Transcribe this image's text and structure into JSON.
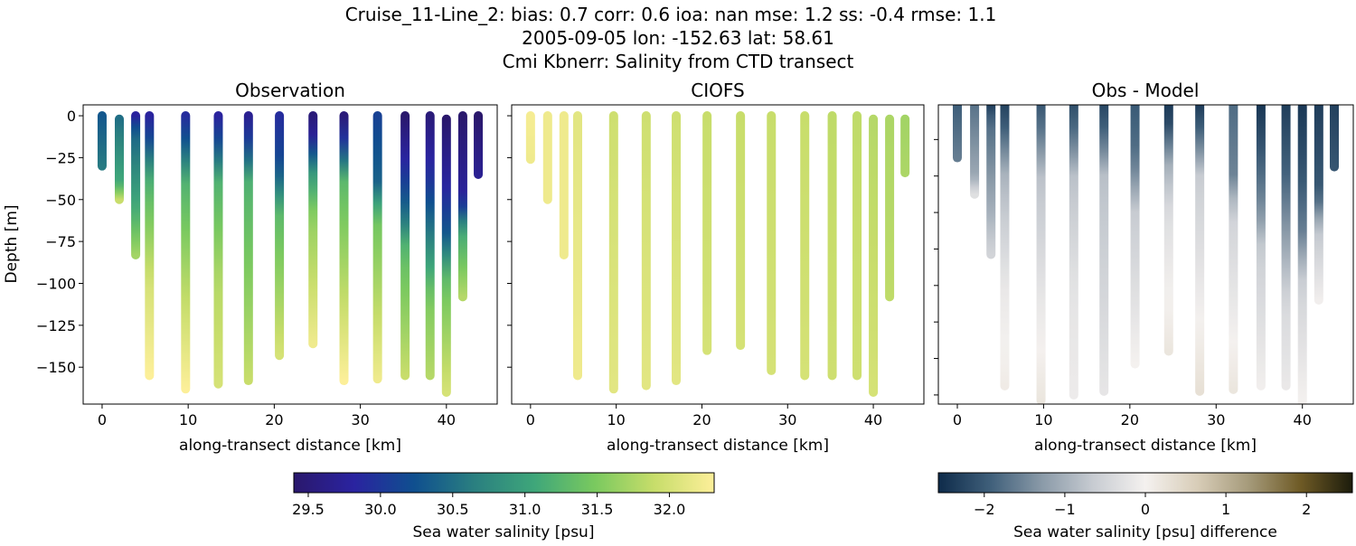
{
  "title_lines": [
    "Cruise_11-Line_2: bias: 0.7  corr: 0.6  ioa: nan  mse: 1.2  ss: -0.4  rmse: 1.1",
    "2005-09-05 lon: -152.63 lat: 58.61",
    "Cmi Kbnerr: Salinity from CTD transect"
  ],
  "chart_data": [
    {
      "type": "scatter",
      "title": "Observation",
      "xlabel": "along-transect distance [km]",
      "ylabel": "Depth [m]",
      "xlim": [
        -2.2,
        45.9
      ],
      "ylim": [
        -172,
        6.5
      ],
      "xticks": [
        0,
        10,
        20,
        30,
        40
      ],
      "yticks": [
        0,
        -25,
        -50,
        -75,
        -100,
        -125,
        -150
      ],
      "colormap": "haline",
      "color_range": [
        29.4,
        32.31
      ],
      "columns": [
        {
          "x": 0,
          "profile": [
            [
              0,
              30.3
            ],
            [
              -30,
              30.6
            ]
          ]
        },
        {
          "x": 2,
          "profile": [
            [
              -2,
              30.5
            ],
            [
              -40,
              31.1
            ],
            [
              -50,
              31.9
            ]
          ]
        },
        {
          "x": 3.9,
          "profile": [
            [
              0,
              29.8
            ],
            [
              -10,
              30.4
            ],
            [
              -60,
              31.2
            ],
            [
              -83,
              31.7
            ]
          ]
        },
        {
          "x": 5.5,
          "profile": [
            [
              0,
              29.8
            ],
            [
              -15,
              30.2
            ],
            [
              -40,
              31.2
            ],
            [
              -100,
              32.0
            ],
            [
              -155,
              32.3
            ]
          ]
        },
        {
          "x": 9.7,
          "profile": [
            [
              0,
              29.9
            ],
            [
              -20,
              30.4
            ],
            [
              -40,
              31.2
            ],
            [
              -100,
              31.8
            ],
            [
              -163,
              32.3
            ]
          ]
        },
        {
          "x": 13.5,
          "profile": [
            [
              0,
              29.8
            ],
            [
              -20,
              30.3
            ],
            [
              -40,
              31.2
            ],
            [
              -100,
              31.8
            ],
            [
              -160,
              32.0
            ]
          ]
        },
        {
          "x": 17,
          "profile": [
            [
              0,
              29.7
            ],
            [
              -20,
              30.2
            ],
            [
              -40,
              31.2
            ],
            [
              -158,
              31.9
            ]
          ]
        },
        {
          "x": 20.6,
          "profile": [
            [
              0,
              29.9
            ],
            [
              -30,
              30.2
            ],
            [
              -60,
              31.3
            ],
            [
              -143,
              32.0
            ]
          ]
        },
        {
          "x": 24.5,
          "profile": [
            [
              0,
              29.5
            ],
            [
              -15,
              29.8
            ],
            [
              -30,
              30.8
            ],
            [
              -60,
              31.6
            ],
            [
              -136,
              32.2
            ]
          ]
        },
        {
          "x": 28.1,
          "profile": [
            [
              0,
              29.5
            ],
            [
              -20,
              30.2
            ],
            [
              -40,
              31.3
            ],
            [
              -158,
              32.3
            ]
          ]
        },
        {
          "x": 32,
          "profile": [
            [
              0,
              30.1
            ],
            [
              -40,
              30.4
            ],
            [
              -60,
              31.4
            ],
            [
              -157,
              32.2
            ]
          ]
        },
        {
          "x": 35.2,
          "profile": [
            [
              0,
              29.4
            ],
            [
              -30,
              29.9
            ],
            [
              -60,
              30.5
            ],
            [
              -80,
              31.3
            ],
            [
              -155,
              31.9
            ]
          ]
        },
        {
          "x": 38.1,
          "profile": [
            [
              0,
              29.5
            ],
            [
              -40,
              30.0
            ],
            [
              -70,
              30.6
            ],
            [
              -110,
              31.5
            ],
            [
              -155,
              31.8
            ]
          ]
        },
        {
          "x": 40,
          "profile": [
            [
              -2,
              29.4
            ],
            [
              -40,
              29.8
            ],
            [
              -70,
              30.3
            ],
            [
              -100,
              31.4
            ],
            [
              -165,
              32.0
            ]
          ]
        },
        {
          "x": 41.9,
          "profile": [
            [
              0,
              29.4
            ],
            [
              -50,
              29.8
            ],
            [
              -70,
              31.1
            ],
            [
              -108,
              31.8
            ]
          ]
        },
        {
          "x": 43.7,
          "profile": [
            [
              0,
              29.4
            ],
            [
              -35,
              29.7
            ]
          ]
        }
      ]
    },
    {
      "type": "scatter",
      "title": "CIOFS",
      "xlabel": "along-transect distance [km]",
      "xlim": [
        -2.2,
        45.9
      ],
      "ylim": [
        -172,
        6.5
      ],
      "xticks": [
        0,
        10,
        20,
        30,
        40
      ],
      "colormap": "haline",
      "color_range": [
        29.4,
        32.31
      ],
      "columns": [
        {
          "x": 0,
          "profile": [
            [
              0,
              32.25
            ],
            [
              -26,
              32.2
            ]
          ]
        },
        {
          "x": 2,
          "profile": [
            [
              0,
              32.2
            ],
            [
              -50,
              32.2
            ]
          ]
        },
        {
          "x": 3.9,
          "profile": [
            [
              0,
              32.2
            ],
            [
              -83,
              32.2
            ]
          ]
        },
        {
          "x": 5.5,
          "profile": [
            [
              0,
              32.1
            ],
            [
              -155,
              32.2
            ]
          ]
        },
        {
          "x": 9.7,
          "profile": [
            [
              0,
              31.95
            ],
            [
              -163,
              32.1
            ]
          ]
        },
        {
          "x": 13.5,
          "profile": [
            [
              0,
              31.95
            ],
            [
              -161,
              32.1
            ]
          ]
        },
        {
          "x": 17,
          "profile": [
            [
              0,
              31.95
            ],
            [
              -158,
              32.1
            ]
          ]
        },
        {
          "x": 20.6,
          "profile": [
            [
              0,
              31.9
            ],
            [
              -140,
              32.0
            ]
          ]
        },
        {
          "x": 24.5,
          "profile": [
            [
              0,
              31.9
            ],
            [
              -137,
              32.0
            ]
          ]
        },
        {
          "x": 28.1,
          "profile": [
            [
              0,
              31.9
            ],
            [
              -152,
              32.0
            ]
          ]
        },
        {
          "x": 32,
          "profile": [
            [
              0,
              31.9
            ],
            [
              -155,
              32.0
            ]
          ]
        },
        {
          "x": 35.2,
          "profile": [
            [
              0,
              31.85
            ],
            [
              -155,
              31.95
            ]
          ]
        },
        {
          "x": 38.1,
          "profile": [
            [
              0,
              31.85
            ],
            [
              -155,
              31.95
            ]
          ]
        },
        {
          "x": 40,
          "profile": [
            [
              -2,
              31.8
            ],
            [
              -165,
              32.0
            ]
          ]
        },
        {
          "x": 41.9,
          "profile": [
            [
              -2,
              31.75
            ],
            [
              -108,
              31.85
            ]
          ]
        },
        {
          "x": 43.7,
          "profile": [
            [
              -2,
              31.7
            ],
            [
              -34,
              31.75
            ]
          ]
        }
      ]
    },
    {
      "type": "scatter",
      "title": "Obs - Model",
      "xlabel": "along-transect distance [km]",
      "xlim": [
        -2.2,
        45.9
      ],
      "ylim": [
        -165,
        -1
      ],
      "xticks": [
        0,
        10,
        20,
        30,
        40
      ],
      "colormap": "diff",
      "color_range": [
        -2.57,
        2.57
      ],
      "values": "observation minus CIOFS"
    }
  ],
  "colorbars": [
    {
      "label": "Sea water salinity [psu]",
      "ticks": [
        "29.5",
        "30.0",
        "30.5",
        "31.0",
        "31.5",
        "32.0"
      ],
      "tick_values": [
        29.5,
        30.0,
        30.5,
        31.0,
        31.5,
        32.0
      ],
      "range": [
        29.4,
        32.31
      ]
    },
    {
      "label": "Sea water salinity [psu] difference",
      "ticks": [
        "−2",
        "−1",
        "0",
        "1",
        "2"
      ],
      "tick_values": [
        -2,
        -1,
        0,
        1,
        2
      ],
      "range": [
        -2.57,
        2.57
      ]
    }
  ],
  "colors": {
    "haline": [
      "#2a186c",
      "#2a23a0",
      "#0f4f8f",
      "#2a7f80",
      "#3ea67a",
      "#79c95f",
      "#c7dd6a",
      "#fdef9a"
    ],
    "diff": [
      "#0e2b4a",
      "#3f5f7a",
      "#8a9aa8",
      "#c8ccd2",
      "#f4f1ef",
      "#d8cdb8",
      "#a59a7a",
      "#6e5a25",
      "#1c1c0c"
    ]
  }
}
